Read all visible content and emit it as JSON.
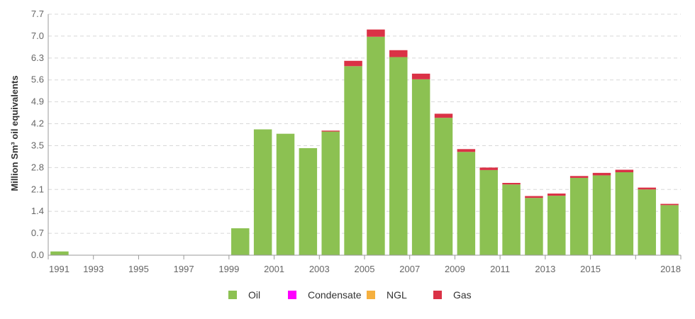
{
  "chart_data": {
    "type": "bar",
    "stacked": true,
    "title": "",
    "xlabel": "",
    "ylabel": "Million Sm³ oil equivalents",
    "ylim": [
      0,
      7.7
    ],
    "yticks": [
      "0.0",
      "0.7",
      "1.4",
      "2.1",
      "2.8",
      "3.5",
      "4.2",
      "4.9",
      "5.6",
      "6.3",
      "7.0",
      "7.7"
    ],
    "grid": true,
    "legend_position": "bottom-center",
    "categories": [
      "1991",
      "1992",
      "1993",
      "1994",
      "1995",
      "1996",
      "1997",
      "1998",
      "1999",
      "2000",
      "2001",
      "2002",
      "2003",
      "2004",
      "2005",
      "2006",
      "2007",
      "2008",
      "2009",
      "2010",
      "2011",
      "2012",
      "2013",
      "2014",
      "2015",
      "2016",
      "2017",
      "2018"
    ],
    "x_tick_labels": [
      "1991",
      "",
      "1993",
      "",
      "1995",
      "",
      "1997",
      "",
      "1999",
      "",
      "2001",
      "",
      "2003",
      "",
      "2005",
      "",
      "2007",
      "",
      "2009",
      "",
      "2011",
      "",
      "2013",
      "",
      "2015",
      "",
      "",
      "2018"
    ],
    "series": [
      {
        "name": "Oil",
        "color": "#8cc152",
        "values": [
          0.12,
          0,
          0,
          0,
          0,
          0,
          0,
          0,
          0.86,
          4.02,
          3.88,
          3.42,
          3.95,
          6.04,
          6.98,
          6.33,
          5.62,
          4.39,
          3.3,
          2.72,
          2.26,
          1.83,
          1.9,
          2.47,
          2.55,
          2.65,
          2.1,
          1.6
        ]
      },
      {
        "name": "Condensate",
        "color": "#ff00ff",
        "values": [
          0,
          0,
          0,
          0,
          0,
          0,
          0,
          0,
          0,
          0,
          0,
          0,
          0,
          0,
          0,
          0,
          0,
          0,
          0,
          0,
          0,
          0,
          0,
          0,
          0,
          0,
          0,
          0
        ]
      },
      {
        "name": "NGL",
        "color": "#f5b03f",
        "values": [
          0,
          0,
          0,
          0,
          0,
          0,
          0,
          0,
          0,
          0,
          0,
          0,
          0,
          0,
          0,
          0,
          0,
          0,
          0,
          0,
          0,
          0,
          0,
          0,
          0,
          0,
          0,
          0
        ]
      },
      {
        "name": "Gas",
        "color": "#da3246",
        "values": [
          0,
          0,
          0,
          0,
          0,
          0,
          0,
          0,
          0,
          0,
          0,
          0,
          0.03,
          0.17,
          0.23,
          0.22,
          0.18,
          0.13,
          0.09,
          0.08,
          0.05,
          0.06,
          0.07,
          0.06,
          0.08,
          0.08,
          0.06,
          0.04
        ]
      }
    ]
  }
}
